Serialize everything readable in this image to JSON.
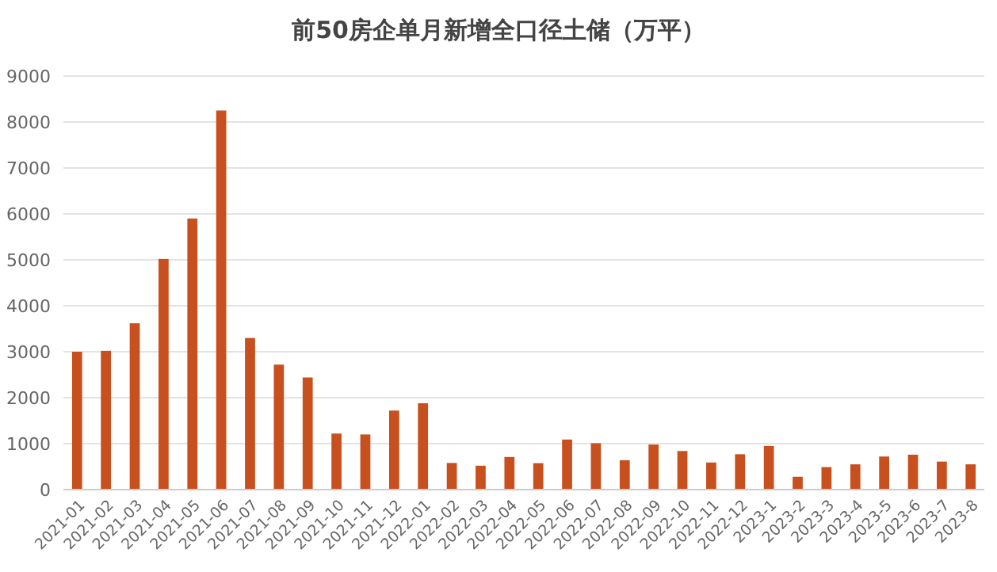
{
  "chart_data": {
    "type": "bar",
    "title": "前50房企单月新增全口径土储（万平）",
    "categories": [
      "2021-01",
      "2021-02",
      "2021-03",
      "2021-04",
      "2021-05",
      "2021-06",
      "2021-07",
      "2021-08",
      "2021-09",
      "2021-10",
      "2021-11",
      "2021-12",
      "2022-01",
      "2022-02",
      "2022-03",
      "2022-04",
      "2022-05",
      "2022-06",
      "2022-07",
      "2022-08",
      "2022-09",
      "2022-10",
      "2022-11",
      "2022-12",
      "2023-1",
      "2023-2",
      "2023-3",
      "2023-4",
      "2023-5",
      "2023-6",
      "2023-7",
      "2023-8"
    ],
    "values": [
      3000,
      3020,
      3620,
      5020,
      5900,
      8250,
      3300,
      2720,
      2440,
      1220,
      1200,
      1720,
      1880,
      580,
      520,
      710,
      575,
      1090,
      1010,
      640,
      980,
      840,
      590,
      770,
      950,
      280,
      490,
      550,
      720,
      760,
      610,
      550
    ],
    "color": "#c8501e",
    "ylim": [
      0,
      9000
    ],
    "yticks": [
      0,
      1000,
      2000,
      3000,
      4000,
      5000,
      6000,
      7000,
      8000,
      9000
    ],
    "grid": "y"
  }
}
